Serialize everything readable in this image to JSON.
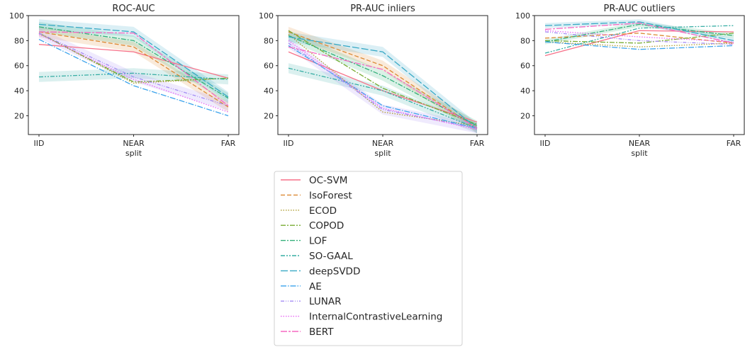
{
  "chart_data": [
    {
      "type": "line",
      "title": "ROC-AUC",
      "xlabel": "split",
      "ylabel": "",
      "categories": [
        "IID",
        "NEAR",
        "FAR"
      ],
      "ylim": [
        5,
        100
      ],
      "yticks": [
        20,
        40,
        60,
        80,
        100
      ],
      "grid": false,
      "series": [
        {
          "name": "OC-SVM",
          "values": [
            77,
            71,
            50
          ]
        },
        {
          "name": "IsoForest",
          "values": [
            87,
            75,
            27
          ]
        },
        {
          "name": "ECOD",
          "values": [
            86,
            46,
            50
          ]
        },
        {
          "name": "COPOD",
          "values": [
            86,
            47,
            50
          ]
        },
        {
          "name": "LOF",
          "values": [
            91,
            80,
            34
          ]
        },
        {
          "name": "SO-GAAL",
          "values": [
            51,
            54,
            49
          ]
        },
        {
          "name": "deepSVDD",
          "values": [
            93,
            87,
            35
          ]
        },
        {
          "name": "AE",
          "values": [
            81,
            44,
            20
          ]
        },
        {
          "name": "LUNAR",
          "values": [
            86,
            51,
            28
          ]
        },
        {
          "name": "InternalContrastiveLearning",
          "values": [
            85,
            49,
            23
          ]
        },
        {
          "name": "BERT",
          "values": [
            87,
            86,
            28
          ]
        }
      ]
    },
    {
      "type": "line",
      "title": "PR-AUC inliers",
      "xlabel": "split",
      "ylabel": "",
      "categories": [
        "IID",
        "NEAR",
        "FAR"
      ],
      "ylim": [
        5,
        100
      ],
      "yticks": [
        20,
        40,
        60,
        80,
        100
      ],
      "grid": false,
      "series": [
        {
          "name": "OC-SVM",
          "values": [
            71,
            40,
            15
          ]
        },
        {
          "name": "IsoForest",
          "values": [
            87,
            60,
            10
          ]
        },
        {
          "name": "ECOD",
          "values": [
            85,
            23,
            12
          ]
        },
        {
          "name": "COPOD",
          "values": [
            88,
            42,
            13
          ]
        },
        {
          "name": "LOF",
          "values": [
            84,
            52,
            12
          ]
        },
        {
          "name": "SO-GAAL",
          "values": [
            58,
            40,
            10
          ]
        },
        {
          "name": "deepSVDD",
          "values": [
            83,
            71,
            10
          ]
        },
        {
          "name": "AE",
          "values": [
            76,
            28,
            10
          ]
        },
        {
          "name": "LUNAR",
          "values": [
            78,
            25,
            10
          ]
        },
        {
          "name": "InternalContrastiveLearning",
          "values": [
            80,
            26,
            9
          ]
        },
        {
          "name": "BERT",
          "values": [
            75,
            57,
            10
          ]
        }
      ]
    },
    {
      "type": "line",
      "title": "PR-AUC outliers",
      "xlabel": "split",
      "ylabel": "",
      "categories": [
        "IID",
        "NEAR",
        "FAR"
      ],
      "ylim": [
        5,
        100
      ],
      "yticks": [
        20,
        40,
        60,
        80,
        100
      ],
      "grid": false,
      "series": [
        {
          "name": "OC-SVM",
          "values": [
            68,
            88,
            87
          ]
        },
        {
          "name": "IsoForest",
          "values": [
            82,
            86,
            78
          ]
        },
        {
          "name": "ECOD",
          "values": [
            79,
            75,
            78
          ]
        },
        {
          "name": "COPOD",
          "values": [
            80,
            78,
            86
          ]
        },
        {
          "name": "LOF",
          "values": [
            79,
            93,
            84
          ]
        },
        {
          "name": "SO-GAAL",
          "values": [
            70,
            90,
            92
          ]
        },
        {
          "name": "deepSVDD",
          "values": [
            92,
            95,
            80
          ]
        },
        {
          "name": "AE",
          "values": [
            79,
            73,
            76
          ]
        },
        {
          "name": "LUNAR",
          "values": [
            87,
            80,
            77
          ]
        },
        {
          "name": "InternalContrastiveLearning",
          "values": [
            88,
            83,
            79
          ]
        },
        {
          "name": "BERT",
          "values": [
            89,
            94,
            78
          ]
        }
      ]
    }
  ],
  "legend": {
    "placement": "bottom-center",
    "items": [
      {
        "label": "OC-SVM",
        "color": "#f77189",
        "dash": "solid"
      },
      {
        "label": "IsoForest",
        "color": "#dc8932",
        "dash": "dashed"
      },
      {
        "label": "ECOD",
        "color": "#ae9d31",
        "dash": "dotted"
      },
      {
        "label": "COPOD",
        "color": "#77ab31",
        "dash": "dashdot"
      },
      {
        "label": "LOF",
        "color": "#33b07a",
        "dash": "dashdot"
      },
      {
        "label": "SO-GAAL",
        "color": "#36ada4",
        "dash": "dashdotdot"
      },
      {
        "label": "deepSVDD",
        "color": "#38a9c5",
        "dash": "longdash"
      },
      {
        "label": "AE",
        "color": "#3ba3ec",
        "dash": "dashdot2"
      },
      {
        "label": "LUNAR",
        "color": "#a48cf4",
        "dash": "dashdot3"
      },
      {
        "label": "InternalContrastiveLearning",
        "color": "#e866f4",
        "dash": "dotted"
      },
      {
        "label": "BERT",
        "color": "#f668c2",
        "dash": "longdash2"
      }
    ]
  }
}
